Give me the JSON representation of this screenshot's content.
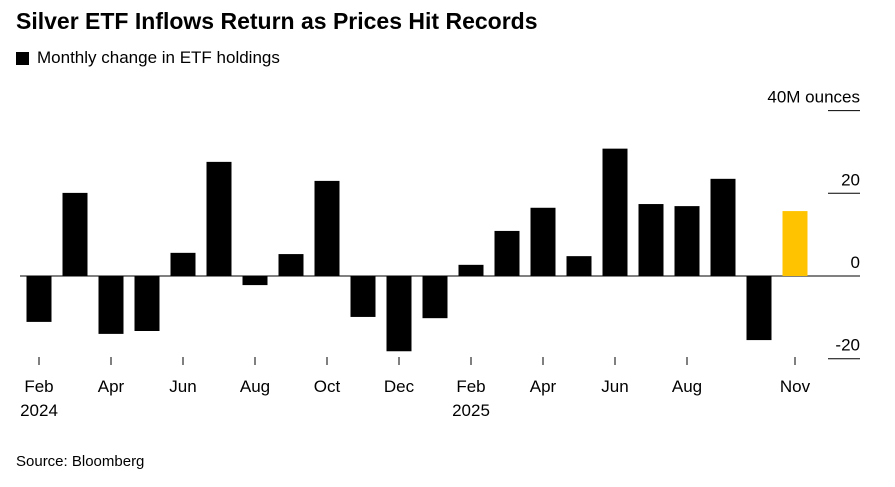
{
  "title": "Silver ETF Inflows Return as Prices Hit Records",
  "legend": {
    "label": "Monthly change in ETF holdings",
    "color": "#000000"
  },
  "source": "Source: Bloomberg",
  "chart_data": {
    "type": "bar",
    "title": "Silver ETF Inflows Return as Prices Hit Records",
    "ylabel": "40M ounces",
    "ylim": [
      -20,
      40
    ],
    "yticks": [
      {
        "value": 40,
        "label": "40M ounces"
      },
      {
        "value": 20,
        "label": "20"
      },
      {
        "value": 0,
        "label": "0"
      },
      {
        "value": -20,
        "label": "-20"
      }
    ],
    "grid": true,
    "yaxis_position": "right",
    "categories": [
      "Feb 2024",
      "Mar 2024",
      "Apr 2024",
      "May 2024",
      "Jun 2024",
      "Jul 2024",
      "Aug 2024",
      "Sep 2024",
      "Oct 2024",
      "Nov 2024",
      "Dec 2024",
      "Jan 2025",
      "Feb 2025",
      "Mar 2025",
      "Apr 2025",
      "May 2025",
      "Jun 2025",
      "Jul 2025",
      "Aug 2025",
      "Sep 2025",
      "Oct 2025",
      "Nov 2025"
    ],
    "xtick_labels": [
      {
        "index": 0,
        "line1": "Feb",
        "line2": "2024"
      },
      {
        "index": 2,
        "line1": "Apr",
        "line2": ""
      },
      {
        "index": 4,
        "line1": "Jun",
        "line2": ""
      },
      {
        "index": 6,
        "line1": "Aug",
        "line2": ""
      },
      {
        "index": 8,
        "line1": "Oct",
        "line2": ""
      },
      {
        "index": 10,
        "line1": "Dec",
        "line2": ""
      },
      {
        "index": 12,
        "line1": "Feb",
        "line2": "2025"
      },
      {
        "index": 14,
        "line1": "Apr",
        "line2": ""
      },
      {
        "index": 16,
        "line1": "Jun",
        "line2": ""
      },
      {
        "index": 18,
        "line1": "Aug",
        "line2": ""
      },
      {
        "index": 21,
        "line1": "Nov",
        "line2": ""
      }
    ],
    "series": [
      {
        "name": "Monthly change in ETF holdings",
        "values": [
          -11.1,
          20.1,
          -14.0,
          -13.3,
          5.6,
          27.6,
          -2.2,
          5.3,
          23.0,
          -9.9,
          -18.2,
          -10.2,
          2.7,
          10.9,
          16.5,
          4.8,
          30.8,
          17.4,
          16.9,
          23.5,
          -15.5,
          15.7
        ]
      }
    ],
    "colors": {
      "default": "#000000",
      "highlight": "#FFC300"
    },
    "highlight_index": 21
  }
}
